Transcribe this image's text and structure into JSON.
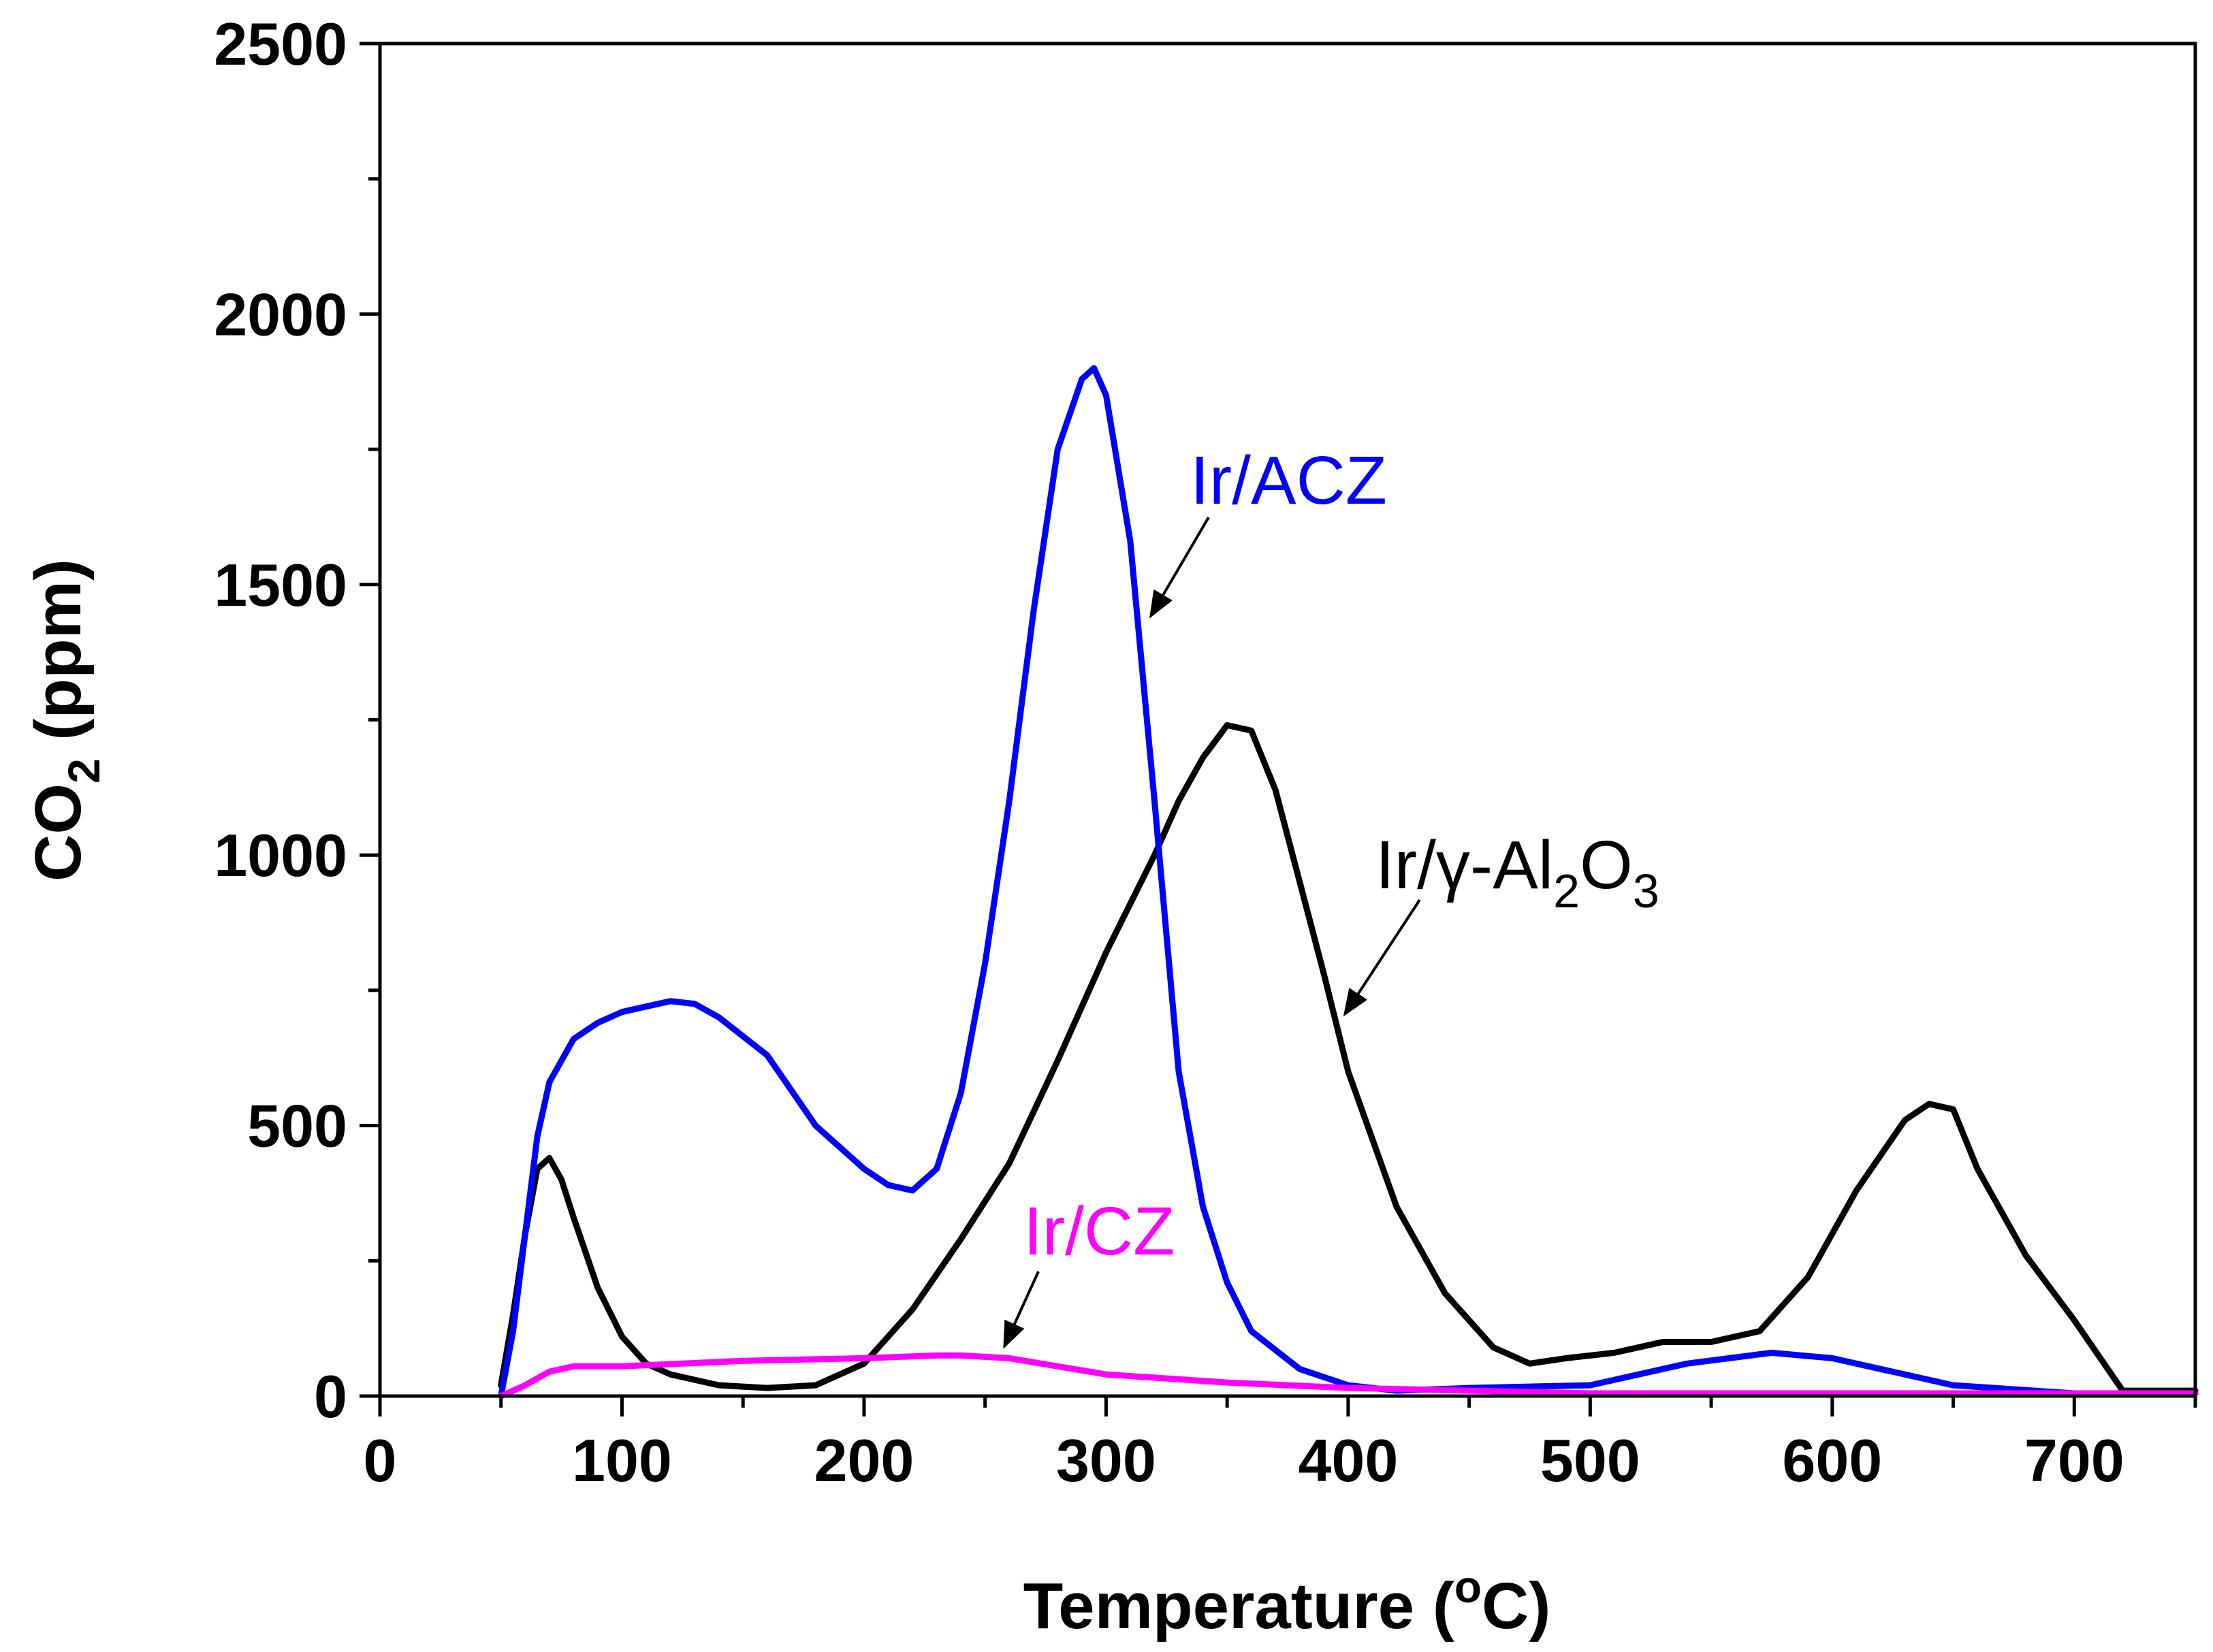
{
  "chart_data": {
    "type": "line",
    "title": "",
    "xlabel": "Temperature (°C)",
    "xlabel_parts": {
      "main": "Temperature (",
      "deg": "o",
      "unit": "C)"
    },
    "ylabel": "CO2 (ppm)",
    "ylabel_parts": {
      "main": "CO",
      "sub": "2",
      "unit": " (ppm)"
    },
    "xlim": [
      0,
      750
    ],
    "ylim": [
      0,
      2500
    ],
    "xticks": [
      0,
      100,
      200,
      300,
      400,
      500,
      600,
      700
    ],
    "yticks": [
      0,
      500,
      1000,
      1500,
      2000,
      2500
    ],
    "grid": false,
    "series": [
      {
        "name": "Ir/γ-Al2O3",
        "color": "#000000",
        "x": [
          50,
          55,
          60,
          65,
          70,
          75,
          80,
          90,
          100,
          110,
          120,
          140,
          160,
          180,
          200,
          220,
          240,
          260,
          280,
          300,
          320,
          330,
          340,
          350,
          360,
          370,
          380,
          390,
          400,
          420,
          440,
          460,
          475,
          490,
          510,
          530,
          550,
          570,
          590,
          610,
          630,
          640,
          650,
          660,
          680,
          700,
          720,
          750
        ],
        "values": [
          20,
          150,
          300,
          420,
          440,
          400,
          330,
          200,
          110,
          60,
          40,
          20,
          15,
          20,
          60,
          160,
          290,
          430,
          620,
          820,
          1000,
          1100,
          1180,
          1240,
          1230,
          1120,
          950,
          780,
          600,
          350,
          190,
          90,
          60,
          70,
          80,
          100,
          100,
          120,
          220,
          380,
          510,
          540,
          530,
          420,
          260,
          140,
          10,
          10
        ]
      },
      {
        "name": "Ir/ACZ",
        "color": "#0000ff",
        "x": [
          50,
          55,
          60,
          65,
          70,
          75,
          80,
          90,
          100,
          110,
          120,
          130,
          140,
          160,
          180,
          200,
          210,
          220,
          230,
          240,
          250,
          260,
          270,
          280,
          290,
          295,
          300,
          310,
          320,
          330,
          340,
          350,
          360,
          380,
          400,
          420,
          450,
          500,
          540,
          575,
          600,
          620,
          650,
          700,
          750
        ],
        "values": [
          0,
          120,
          300,
          480,
          580,
          620,
          660,
          690,
          710,
          720,
          730,
          725,
          700,
          630,
          500,
          420,
          390,
          380,
          420,
          560,
          800,
          1100,
          1450,
          1750,
          1880,
          1900,
          1850,
          1580,
          1100,
          600,
          350,
          210,
          120,
          50,
          20,
          10,
          15,
          20,
          60,
          80,
          70,
          50,
          20,
          5,
          5
        ]
      },
      {
        "name": "Ir/CZ",
        "color": "#ff00ff",
        "x": [
          50,
          55,
          60,
          70,
          80,
          100,
          150,
          200,
          230,
          240,
          260,
          280,
          300,
          350,
          400,
          450,
          500,
          600,
          750
        ],
        "values": [
          0,
          10,
          20,
          45,
          55,
          55,
          65,
          70,
          75,
          75,
          70,
          55,
          40,
          25,
          15,
          10,
          5,
          5,
          5
        ]
      }
    ],
    "annotations": [
      {
        "text": "Ir/ACZ",
        "color": "#0000ff",
        "series": "Ir/ACZ"
      },
      {
        "text_parts": [
          "Ir/γ-Al",
          "2",
          "O",
          "3"
        ],
        "color": "#000000",
        "series": "Ir/γ-Al2O3"
      },
      {
        "text": "Ir/CZ",
        "color": "#ff00ff",
        "series": "Ir/CZ"
      }
    ]
  }
}
